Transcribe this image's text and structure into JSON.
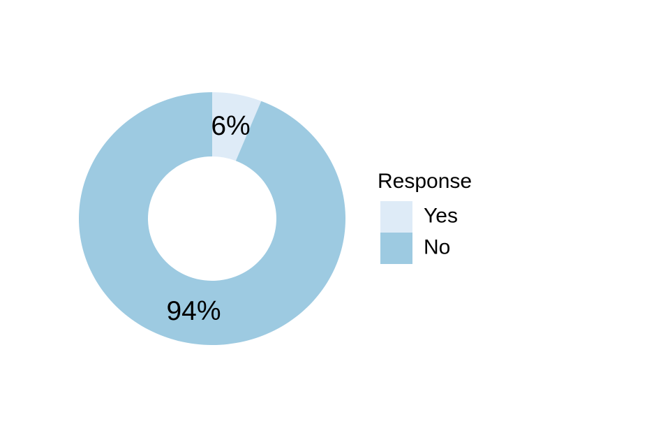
{
  "chart_data": {
    "type": "pie",
    "subtype": "donut",
    "legend_title": "Response",
    "categories": [
      "Yes",
      "No"
    ],
    "values": [
      6,
      94
    ],
    "slice_labels": [
      "6%",
      "94%"
    ],
    "colors": [
      "#DEEBF7",
      "#9DCAE1"
    ],
    "label_color": "#000000",
    "background_color": "#ffffff",
    "legend_position": "right",
    "start_angle_deg": 0,
    "direction": "clockwise",
    "grid": "off",
    "axes": "none"
  }
}
